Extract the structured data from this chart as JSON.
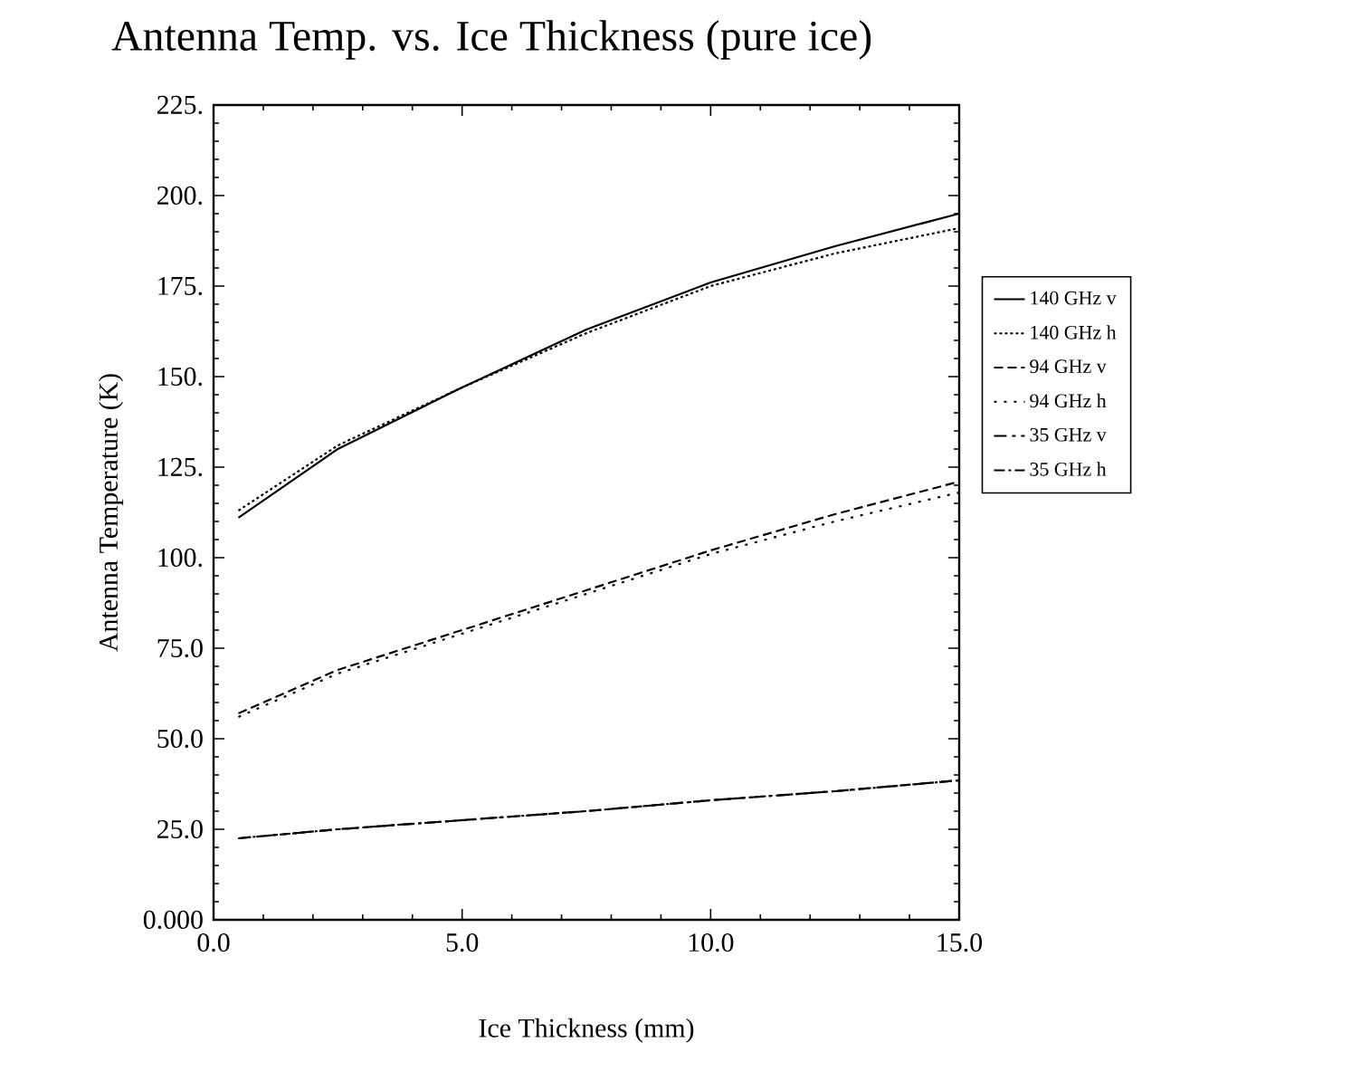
{
  "chart_data": {
    "type": "line",
    "title": "Antenna Temp. vs. Ice Thickness (pure ice)",
    "xlabel": "Ice Thickness (mm)",
    "ylabel": "Antenna Temperature (K)",
    "x": [
      0.5,
      2.5,
      5,
      7.5,
      10,
      12.5,
      15
    ],
    "xlim": [
      0,
      15
    ],
    "ylim": [
      0,
      225
    ],
    "xticks": [
      {
        "value": 0,
        "label": "0.0"
      },
      {
        "value": 5,
        "label": "5.0"
      },
      {
        "value": 10,
        "label": "10.0"
      },
      {
        "value": 15,
        "label": "15.0"
      }
    ],
    "yticks": [
      {
        "value": 0,
        "label": "0.000"
      },
      {
        "value": 25,
        "label": "25.0"
      },
      {
        "value": 50,
        "label": "50.0"
      },
      {
        "value": 75,
        "label": "75.0"
      },
      {
        "value": 100,
        "label": "100."
      },
      {
        "value": 125,
        "label": "125."
      },
      {
        "value": 150,
        "label": "150."
      },
      {
        "value": 175,
        "label": "175."
      },
      {
        "value": 200,
        "label": "200."
      },
      {
        "value": 225,
        "label": "225."
      }
    ],
    "legend": "right",
    "grid": false,
    "marker": "none",
    "series": [
      {
        "name": "140 GHz v",
        "color": "#000000",
        "line_style": "solid",
        "values": [
          111,
          130,
          147,
          163,
          176,
          186,
          195
        ]
      },
      {
        "name": "140 GHz h",
        "color": "#000000",
        "line_style": "dotted",
        "values": [
          113,
          131,
          147,
          162,
          175,
          184,
          191
        ]
      },
      {
        "name": "94 GHz v",
        "color": "#000000",
        "line_style": "dashed",
        "values": [
          57,
          69,
          80,
          91,
          102,
          112,
          121
        ]
      },
      {
        "name": "94 GHz h",
        "color": "#000000",
        "line_style": "loosely dotted",
        "values": [
          56,
          68,
          79,
          90,
          101,
          110,
          118
        ]
      },
      {
        "name": "35 GHz v",
        "color": "#000000",
        "line_style": "dashdot",
        "values": [
          22.5,
          25,
          27.5,
          30,
          33,
          35.5,
          38.5
        ]
      },
      {
        "name": "35 GHz h",
        "color": "#000000",
        "line_style": "dashdotted",
        "values": [
          22.5,
          25,
          27.5,
          30,
          33,
          35.5,
          38.5
        ]
      }
    ]
  }
}
